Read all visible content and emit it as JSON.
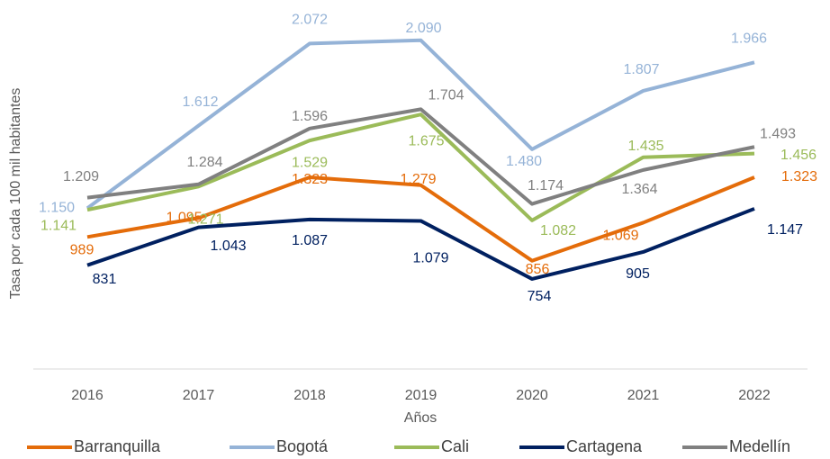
{
  "chart_data": {
    "type": "line",
    "x_label": "Años",
    "y_label": "Tasa por cada 100 mil habitantes",
    "categories": [
      "2016",
      "2017",
      "2018",
      "2019",
      "2020",
      "2021",
      "2022"
    ],
    "ylim": [
      250,
      2250
    ],
    "series": [
      {
        "name": "Barranquilla",
        "color": "#e46c0a",
        "values": [
          989,
          1095,
          1323,
          1279,
          856,
          1069,
          1323
        ],
        "value_labels": [
          "989",
          "1.095",
          "1.323",
          "1.279",
          "856",
          "1.069",
          "1.323"
        ]
      },
      {
        "name": "Bogotá",
        "color": "#95b3d7",
        "values": [
          1150,
          1612,
          2072,
          2090,
          1480,
          1807,
          1966
        ],
        "value_labels": [
          "1.150",
          "1.612",
          "2.072",
          "2.090",
          "1.480",
          "1.807",
          "1.966"
        ]
      },
      {
        "name": "Cali",
        "color": "#9bbb59",
        "values": [
          1141,
          1271,
          1529,
          1675,
          1082,
          1435,
          1456
        ],
        "value_labels": [
          "1.141",
          "1.271",
          "1.529",
          "1.675",
          "1.082",
          "1.435",
          "1.456"
        ]
      },
      {
        "name": "Cartagena",
        "color": "#002060",
        "values": [
          831,
          1043,
          1087,
          1079,
          754,
          905,
          1147
        ],
        "value_labels": [
          "831",
          "1.043",
          "1.087",
          "1.079",
          "754",
          "905",
          "1.147"
        ]
      },
      {
        "name": "Medellín",
        "color": "#808080",
        "values": [
          1209,
          1284,
          1596,
          1704,
          1174,
          1364,
          1493
        ],
        "value_labels": [
          "1.209",
          "1.284",
          "1.596",
          "1.704",
          "1.174",
          "1.364",
          "1.493"
        ]
      }
    ]
  }
}
